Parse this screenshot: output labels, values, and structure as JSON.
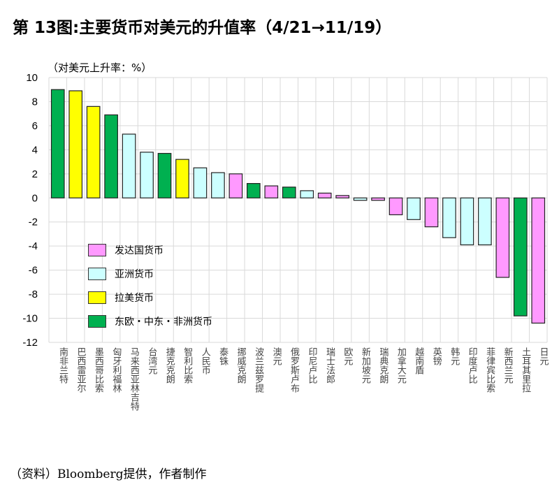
{
  "title": "第 13图:主要货币对美元的升值率（4/21→11/19）",
  "footer": "（资料）Bloomberg提供，作者制作",
  "chart_data": {
    "type": "bar",
    "title": "第 13图:主要货币对美元的升值率（4/21→11/19）",
    "ylabel": "（对美元上升率：%）",
    "ylim": [
      -12,
      10
    ],
    "yticks": [
      10,
      8,
      6,
      4,
      2,
      0,
      -2,
      -4,
      -6,
      -8,
      -10,
      -12
    ],
    "grid": true,
    "legend_placement": "lower-left",
    "groups": [
      {
        "key": "dev",
        "name": "发达国货币",
        "color": "#ff99ff"
      },
      {
        "key": "asia",
        "name": "亚洲货币",
        "color": "#ccffff"
      },
      {
        "key": "latam",
        "name": "拉美货币",
        "color": "#ffff00"
      },
      {
        "key": "emea",
        "name": "东欧・中东・非洲货币",
        "color": "#00b050"
      }
    ],
    "categories": [
      "南非兰特",
      "巴西雷亚尔",
      "墨西哥比索",
      "匈牙利福林",
      "马来西亚林吉特",
      "台湾元",
      "捷克克朗",
      "智利比索",
      "人民币",
      "泰铢",
      "挪威克朗",
      "波兰兹罗提",
      "澳元",
      "俄罗斯卢布",
      "印尼卢比",
      "瑞士法郎",
      "欧元",
      "新加坡元",
      "瑞典克朗",
      "加拿大元",
      "越南盾",
      "英镑",
      "韩元",
      "印度卢比",
      "菲律宾比索",
      "新西兰元",
      "土耳其里拉",
      "日元"
    ],
    "values": [
      9.0,
      8.9,
      7.6,
      6.9,
      5.3,
      3.8,
      3.7,
      3.2,
      2.5,
      2.1,
      2.0,
      1.2,
      1.0,
      0.9,
      0.6,
      0.4,
      0.2,
      -0.2,
      -0.2,
      -1.4,
      -1.8,
      -2.4,
      -3.3,
      -3.9,
      -3.9,
      -6.6,
      -9.8,
      -10.4
    ],
    "group_of": [
      "emea",
      "latam",
      "latam",
      "emea",
      "asia",
      "asia",
      "emea",
      "latam",
      "asia",
      "asia",
      "dev",
      "emea",
      "dev",
      "emea",
      "asia",
      "dev",
      "dev",
      "asia",
      "dev",
      "dev",
      "asia",
      "dev",
      "asia",
      "asia",
      "asia",
      "dev",
      "emea",
      "dev"
    ]
  }
}
